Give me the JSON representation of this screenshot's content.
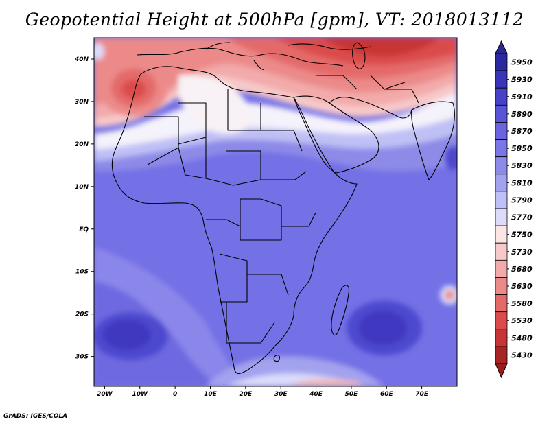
{
  "title": "Geopotential Height at 500hPa [gpm], VT: 2018013112",
  "credit": "GrADS: IGES/COLA",
  "map": {
    "region": "Africa and Middle East",
    "lat_range": [
      -37,
      45
    ],
    "lon_range": [
      -23,
      80
    ],
    "lat_ticks": [
      "40N",
      "30N",
      "20N",
      "10N",
      "EQ",
      "10S",
      "20S",
      "30S"
    ],
    "lon_ticks": [
      "20W",
      "10W",
      "0",
      "10E",
      "20E",
      "30E",
      "40E",
      "50E",
      "60E",
      "70E"
    ]
  },
  "colorbar": {
    "labels": [
      "5950",
      "5930",
      "5910",
      "5890",
      "5870",
      "5850",
      "5830",
      "5810",
      "5790",
      "5770",
      "5750",
      "5730",
      "5680",
      "5630",
      "5580",
      "5530",
      "5480",
      "5430"
    ],
    "colors": [
      "#2a2a9e",
      "#3a35b8",
      "#4842c9",
      "#5a55d6",
      "#6a64e0",
      "#7b76e8",
      "#8d8ae8",
      "#a3a2ef",
      "#bfc0f5",
      "#dcdcfa",
      "#fbe5e5",
      "#f8c9c9",
      "#f2aaaa",
      "#ec8a8a",
      "#e46a6a",
      "#db4b4b",
      "#c73535",
      "#a82525"
    ],
    "top_color": "#2d2891",
    "bottom_color": "#9c1c1c"
  }
}
